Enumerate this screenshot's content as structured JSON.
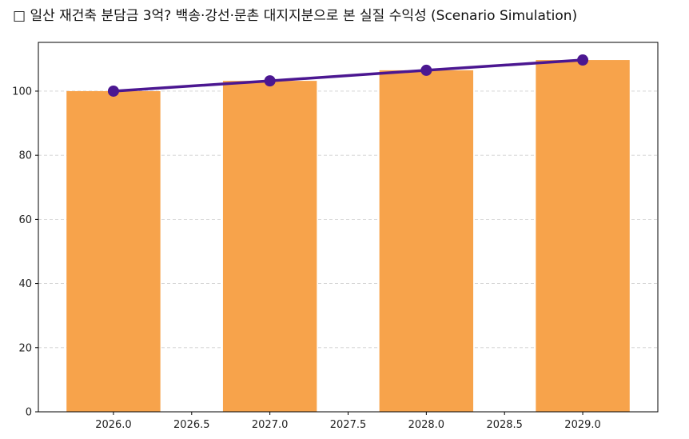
{
  "chart_data": {
    "type": "bar+line",
    "title": "□ 일산 재건축 분담금 3억? 백송·강선·문촌 대지지분으로 본 실질 수익성 (Scenario Simulation)",
    "xlabel": "",
    "ylabel": "",
    "x": [
      2026,
      2027,
      2028,
      2029
    ],
    "bar_values": [
      100,
      103.2,
      106.5,
      109.7
    ],
    "line_values": [
      100,
      103.2,
      106.5,
      109.7
    ],
    "bar_width_years": 0.6,
    "xlim": [
      2025.52,
      2029.48
    ],
    "ylim": [
      0,
      115.2
    ],
    "xticks": [
      2026.0,
      2026.5,
      2027.0,
      2027.5,
      2028.0,
      2028.5,
      2029.0
    ],
    "xtick_labels": [
      "2026.0",
      "2026.5",
      "2027.0",
      "2027.5",
      "2028.0",
      "2028.5",
      "2029.0"
    ],
    "yticks": [
      0,
      20,
      40,
      60,
      80,
      100
    ],
    "ytick_labels": [
      "0",
      "20",
      "40",
      "60",
      "80",
      "100"
    ],
    "grid": "y-dashed",
    "colors": {
      "bar": "#F7A34B",
      "line": "#4B1791",
      "grid": "#d0d0d0"
    }
  }
}
